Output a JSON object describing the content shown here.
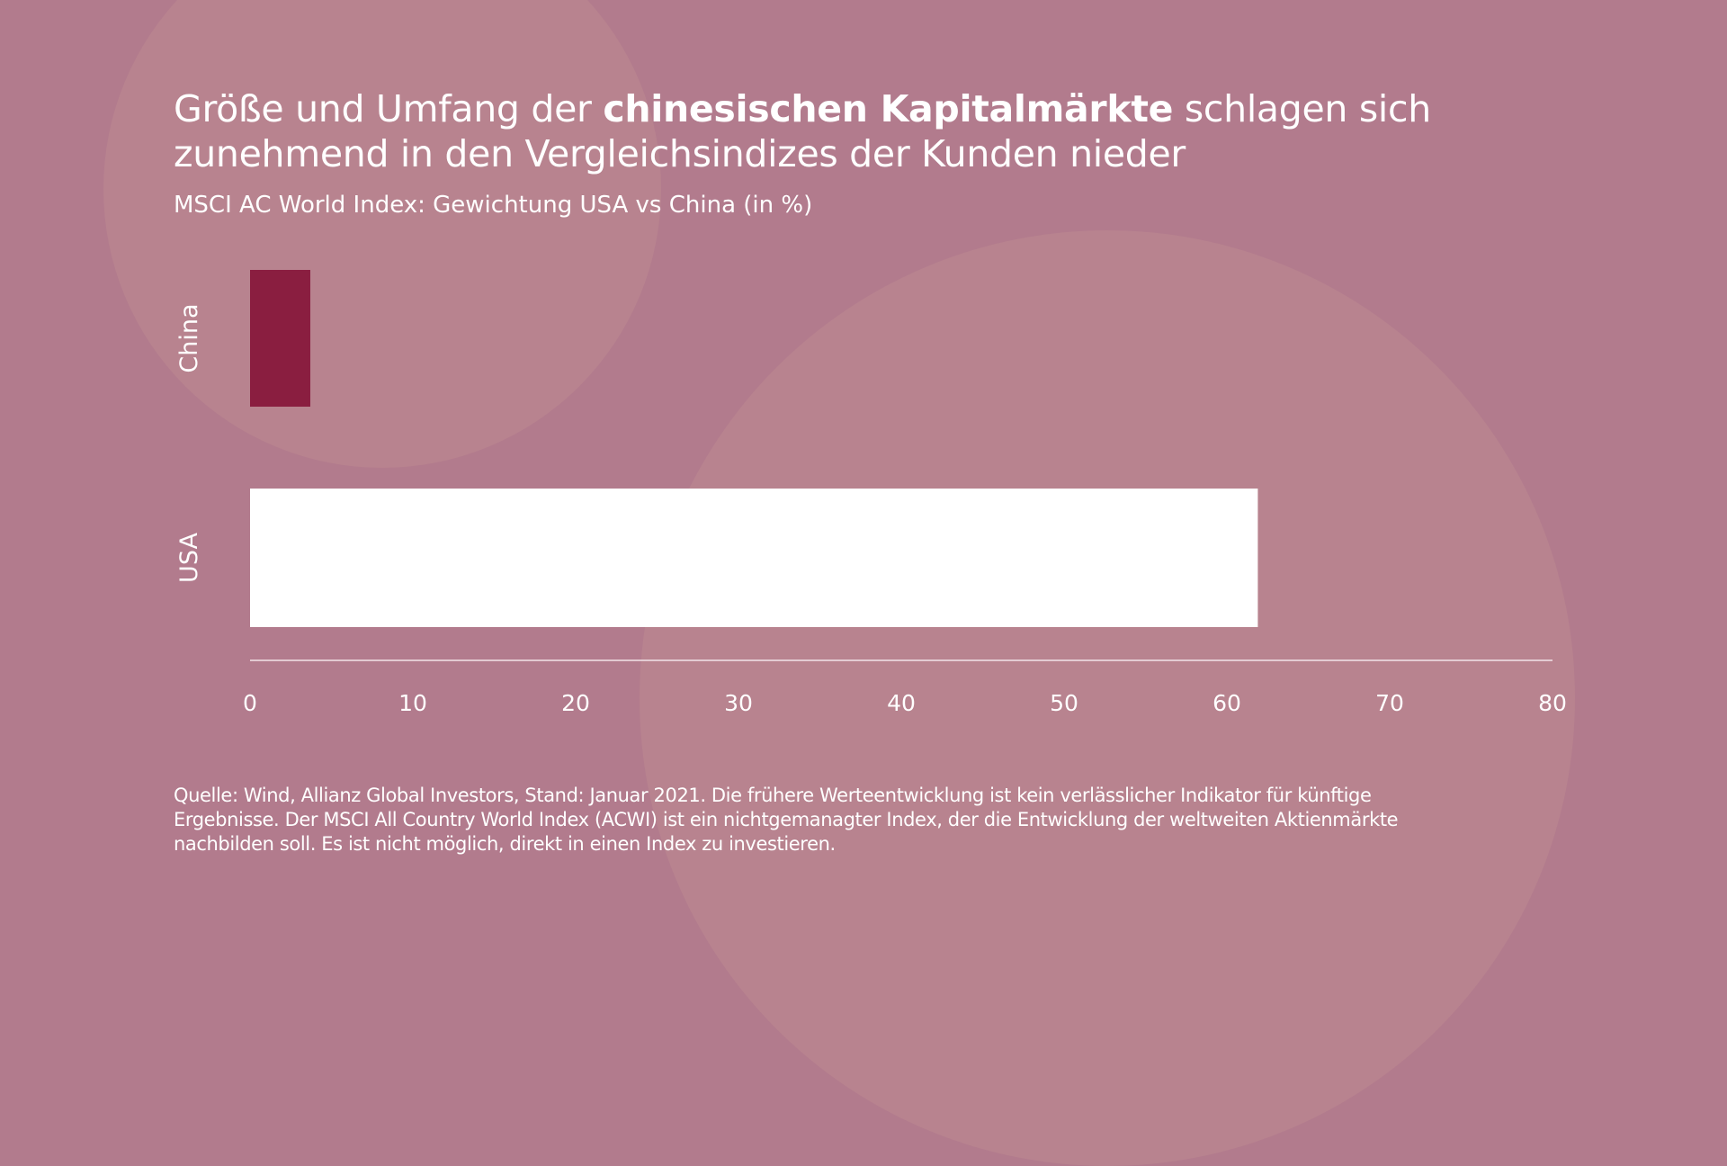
{
  "title": {
    "pre": "Größe und Umfang der ",
    "bold": "chinesischen Kapitalmärkte",
    "post": " schlagen sich",
    "line2": "zunehmend in den Vergleichsindizes der Kunden nieder"
  },
  "subtitle": "MSCI AC World Index: Gewichtung USA vs China (in %)",
  "footnote": [
    "Quelle: Wind, Allianz Global Investors, Stand: Januar 2021. Die frühere Werteentwicklung ist kein verlässlicher Indikator für künftige",
    "Ergebnisse. Der MSCI All Country World Index (ACWI) ist ein nichtgemanagter Index, der die Entwicklung der weltweiten Aktienmärkte",
    "nachbilden soll. Es ist nicht möglich, direkt in einen Index zu investieren."
  ],
  "colors": {
    "background": "#b27b8d",
    "china": "#8a1e40",
    "usa": "#ffffff"
  },
  "chart_data": {
    "type": "bar",
    "orientation": "horizontal",
    "title": "MSCI AC World Index: Gewichtung USA vs China (in %)",
    "categories": [
      "China",
      "USA"
    ],
    "values": [
      3.7,
      61.9
    ],
    "colors": [
      "#8a1e40",
      "#ffffff"
    ],
    "xlim": [
      0,
      80
    ],
    "xticks": [
      "0",
      "10",
      "20",
      "30",
      "40",
      "50",
      "60",
      "70",
      "80"
    ],
    "grid": false,
    "legend": "none"
  }
}
